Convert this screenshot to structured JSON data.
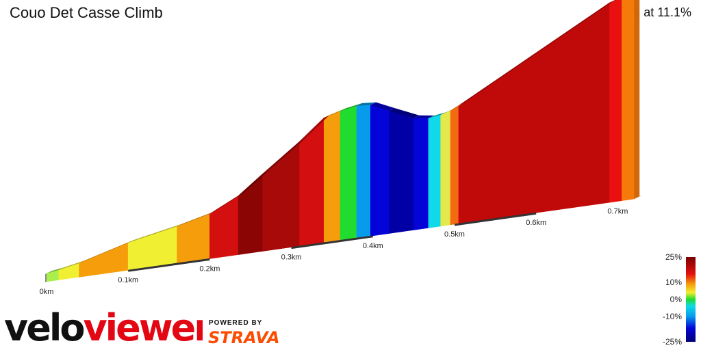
{
  "header": {
    "title": "Couo Det Casse Climb",
    "summary": "0.7 km at 11.1%"
  },
  "branding": {
    "logo_part1": "velo",
    "logo_part2": "viewer",
    "powered_by": "POWERED BY",
    "strava": "STRAVA",
    "colors": {
      "logo_dark": "#111111",
      "logo_red": "#e30613",
      "strava": "#fc4c02"
    }
  },
  "chart_data": {
    "type": "area",
    "xlabel": "",
    "ylabel": "",
    "x_ticks": [
      "0km",
      "0.1km",
      "0.2km",
      "0.3km",
      "0.4km",
      "0.5km",
      "0.6km",
      "0.7km"
    ],
    "x_range_km": [
      0,
      0.74
    ],
    "profile": [
      {
        "x": 0.0,
        "e": 0.0
      },
      {
        "x": 0.015,
        "e": 0.6
      },
      {
        "x": 0.04,
        "e": 2.0
      },
      {
        "x": 0.1,
        "e": 6.8
      },
      {
        "x": 0.16,
        "e": 10.2
      },
      {
        "x": 0.2,
        "e": 13.0
      },
      {
        "x": 0.235,
        "e": 18.0
      },
      {
        "x": 0.265,
        "e": 24.6
      },
      {
        "x": 0.31,
        "e": 34.2
      },
      {
        "x": 0.34,
        "e": 41.4
      },
      {
        "x": 0.36,
        "e": 43.0
      },
      {
        "x": 0.38,
        "e": 44.0
      },
      {
        "x": 0.397,
        "e": 43.6
      },
      {
        "x": 0.42,
        "e": 40.6
      },
      {
        "x": 0.45,
        "e": 36.8
      },
      {
        "x": 0.468,
        "e": 36.0
      },
      {
        "x": 0.483,
        "e": 36.6
      },
      {
        "x": 0.495,
        "e": 37.6
      },
      {
        "x": 0.505,
        "e": 39.0
      },
      {
        "x": 0.69,
        "e": 68.0
      },
      {
        "x": 0.705,
        "e": 69.0
      },
      {
        "x": 0.72,
        "e": 70.0
      }
    ],
    "segment_colors": [
      "#a9ef4d",
      "#f1ef32",
      "#f59d0a",
      "#f1ef32",
      "#f59d0a",
      "#d40f0f",
      "#8b0505",
      "#a80a0a",
      "#d40f0f",
      "#f59d0a",
      "#1fdc2f",
      "#079ceb",
      "#0404d8",
      "#0000a6",
      "#0404d8",
      "#10d9e8",
      "#e4e84a",
      "#f46a12",
      "#c00a0a",
      "#e8110f",
      "#f57a0a"
    ],
    "gradient_legend": {
      "labels": [
        "25%",
        "10%",
        "0%",
        "-10%",
        "-25%"
      ],
      "values": [
        25,
        10,
        0,
        -10,
        -25
      ],
      "stops": [
        {
          "v": 25,
          "c": "#7a0000"
        },
        {
          "v": 15,
          "c": "#e40f0f"
        },
        {
          "v": 9,
          "c": "#f59d0a"
        },
        {
          "v": 4,
          "c": "#f1ef32"
        },
        {
          "v": 0,
          "c": "#1fdc2f"
        },
        {
          "v": -4,
          "c": "#10d9e8"
        },
        {
          "v": -10,
          "c": "#079ceb"
        },
        {
          "v": -17,
          "c": "#0404d8"
        },
        {
          "v": -25,
          "c": "#00007a"
        }
      ]
    }
  }
}
